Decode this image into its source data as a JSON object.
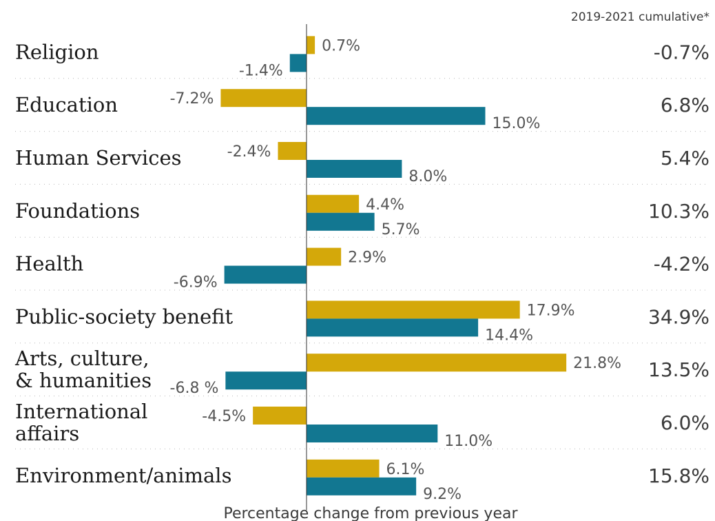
{
  "chart_data": {
    "type": "bar",
    "orientation": "horizontal",
    "header_note": "2019-2021 cumulative*",
    "xlabel": "Percentage change from previous year",
    "colors": {
      "year1": "#D4A80A",
      "year2": "#127791"
    },
    "categories": [
      {
        "label_lines": [
          "Religion"
        ],
        "v1": 0.7,
        "v1_label": "0.7%",
        "v2": -1.4,
        "v2_label": "-1.4%",
        "cumulative": "-0.7%"
      },
      {
        "label_lines": [
          "Education"
        ],
        "v1": -7.2,
        "v1_label": "-7.2%",
        "v2": 15.0,
        "v2_label": "15.0%",
        "cumulative": "6.8%"
      },
      {
        "label_lines": [
          "Human Services"
        ],
        "v1": -2.4,
        "v1_label": "-2.4%",
        "v2": 8.0,
        "v2_label": "8.0%",
        "cumulative": "5.4%"
      },
      {
        "label_lines": [
          "Foundations"
        ],
        "v1": 4.4,
        "v1_label": "4.4%",
        "v2": 5.7,
        "v2_label": "5.7%",
        "cumulative": "10.3%"
      },
      {
        "label_lines": [
          "Health"
        ],
        "v1": 2.9,
        "v1_label": "2.9%",
        "v2": -6.9,
        "v2_label": "-6.9%",
        "cumulative": "-4.2%"
      },
      {
        "label_lines": [
          "Public-society benefit"
        ],
        "v1": 17.9,
        "v1_label": "17.9%",
        "v2": 14.4,
        "v2_label": "14.4%",
        "cumulative": "34.9%"
      },
      {
        "label_lines": [
          "Arts, culture,",
          "& humanities"
        ],
        "v1": 21.8,
        "v1_label": "21.8%",
        "v2": -6.8,
        "v2_label": "-6.8 %",
        "cumulative": "13.5%"
      },
      {
        "label_lines": [
          "International",
          "affairs"
        ],
        "v1": -4.5,
        "v1_label": "-4.5%",
        "v2": 11.0,
        "v2_label": "11.0%",
        "cumulative": "6.0%"
      },
      {
        "label_lines": [
          "Environment/animals"
        ],
        "v1": 6.1,
        "v1_label": "6.1%",
        "v2": 9.2,
        "v2_label": "9.2%",
        "cumulative": "15.8%"
      }
    ]
  }
}
